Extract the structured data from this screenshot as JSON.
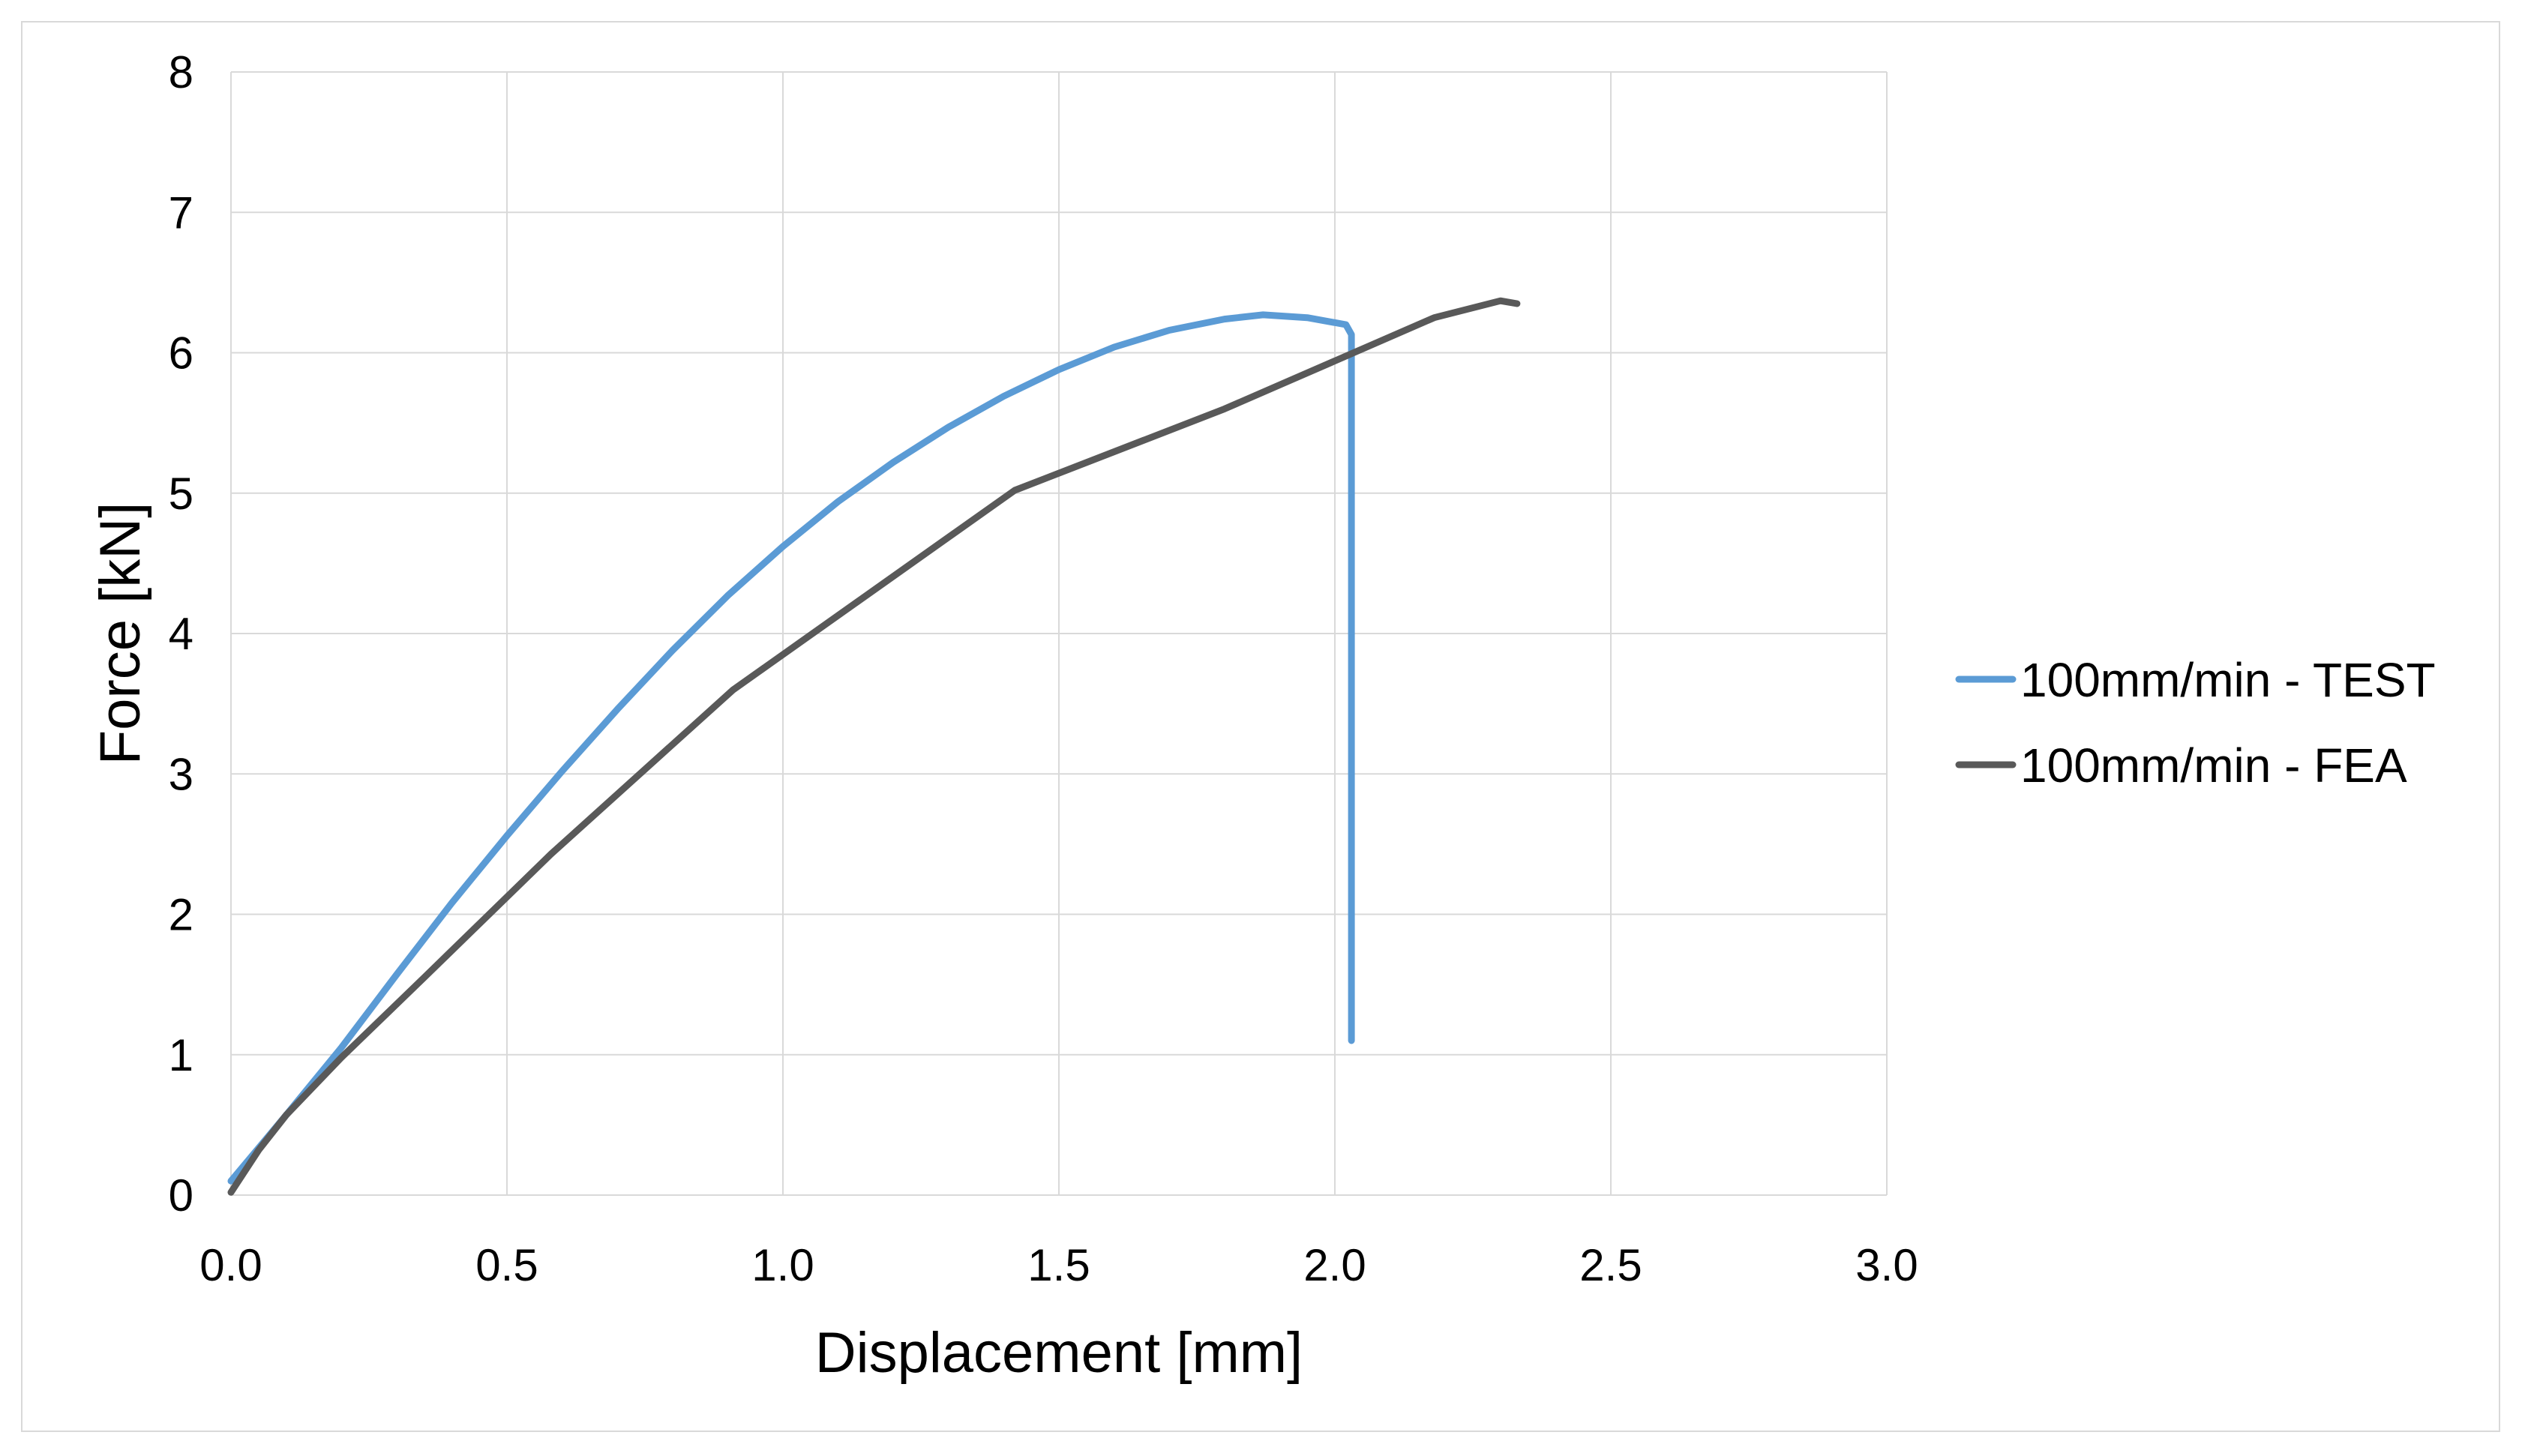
{
  "chart_data": {
    "type": "line",
    "title": "",
    "xlabel": "Displacement [mm]",
    "ylabel": "Force [kN]",
    "xlim": [
      0,
      3
    ],
    "ylim": [
      0,
      8
    ],
    "grid": true,
    "legend_position": "right",
    "xticks": [
      {
        "value": 0,
        "label": "0.0"
      },
      {
        "value": 0.5,
        "label": "0.5"
      },
      {
        "value": 1,
        "label": "1.0"
      },
      {
        "value": 1.5,
        "label": "1.5"
      },
      {
        "value": 2,
        "label": "2.0"
      },
      {
        "value": 2.5,
        "label": "2.5"
      },
      {
        "value": 3,
        "label": "3.0"
      }
    ],
    "yticks": [
      {
        "value": 0,
        "label": "0"
      },
      {
        "value": 1,
        "label": "1"
      },
      {
        "value": 2,
        "label": "2"
      },
      {
        "value": 3,
        "label": "3"
      },
      {
        "value": 4,
        "label": "4"
      },
      {
        "value": 5,
        "label": "5"
      },
      {
        "value": 6,
        "label": "6"
      },
      {
        "value": 7,
        "label": "7"
      },
      {
        "value": 8,
        "label": "8"
      }
    ],
    "series": [
      {
        "name": "100mm/min - TEST",
        "color": "#5b9bd5",
        "x": [
          0.0,
          0.1,
          0.2,
          0.3,
          0.4,
          0.5,
          0.6,
          0.7,
          0.8,
          0.9,
          1.0,
          1.1,
          1.2,
          1.3,
          1.4,
          1.5,
          1.6,
          1.7,
          1.8,
          1.87,
          1.95,
          2.02,
          2.03,
          2.03,
          2.03
        ],
        "y": [
          0.1,
          0.57,
          1.05,
          1.57,
          2.08,
          2.56,
          3.02,
          3.46,
          3.88,
          4.27,
          4.62,
          4.94,
          5.22,
          5.47,
          5.69,
          5.88,
          6.04,
          6.16,
          6.24,
          6.27,
          6.25,
          6.2,
          6.13,
          6.0,
          1.1
        ]
      },
      {
        "name": "100mm/min - FEA",
        "color": "#595959",
        "x": [
          0.0,
          0.05,
          0.1,
          0.2,
          0.35,
          0.58,
          0.91,
          1.42,
          1.8,
          2.18,
          2.3,
          2.33
        ],
        "y": [
          0.02,
          0.32,
          0.57,
          0.98,
          1.55,
          2.43,
          3.6,
          5.02,
          5.6,
          6.25,
          6.37,
          6.35
        ]
      }
    ]
  }
}
